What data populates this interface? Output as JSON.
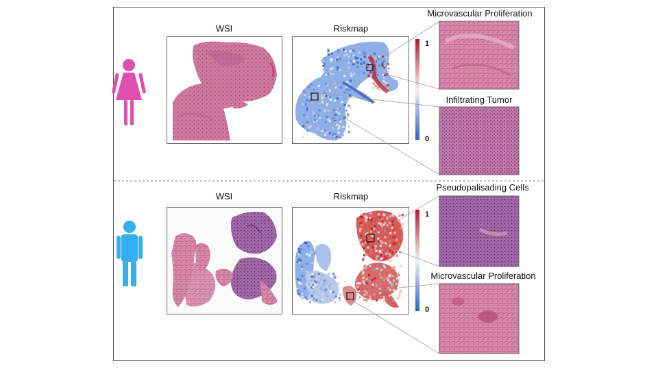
{
  "panels": [
    {
      "id": "female",
      "icon": "female-person-icon",
      "icon_color": "#e04fb0",
      "wsi_label": "WSI",
      "riskmap_label": "Riskmap",
      "scale_max": "1",
      "scale_min": "0",
      "callouts": [
        "Microvascular Proliferation",
        "Infiltrating Tumor"
      ]
    },
    {
      "id": "male",
      "icon": "male-person-icon",
      "icon_color": "#35aef0",
      "wsi_label": "WSI",
      "riskmap_label": "Riskmap",
      "scale_max": "1",
      "scale_min": "0",
      "callouts": [
        "Pseudopalisading Cells",
        "Microvascular Proliferation"
      ]
    }
  ],
  "colors": {
    "risk_high": "#b2182b",
    "risk_mid": "#f7f7f7",
    "risk_low": "#2f5fc4",
    "tissue_pink": "#c95f8a",
    "tissue_purple": "#8c4a8c"
  }
}
